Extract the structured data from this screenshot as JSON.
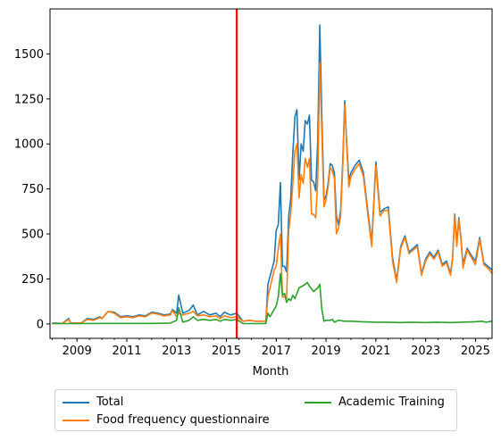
{
  "chart_data": {
    "type": "line",
    "title": "",
    "xlabel": "Month",
    "ylabel": "",
    "xlim": [
      "2007-12",
      "2025-09"
    ],
    "ylim": [
      -80,
      1750
    ],
    "x_ticks": [
      "2009",
      "2011",
      "2013",
      "2015",
      "2017",
      "2019",
      "2021",
      "2023",
      "2025"
    ],
    "y_ticks": [
      0,
      250,
      500,
      750,
      1000,
      1250,
      1500
    ],
    "grid": false,
    "legend_position": "below",
    "vertical_line": {
      "x": "2015-06",
      "color": "#ff0000"
    },
    "series": [
      {
        "name": "Total",
        "color": "#1f77b4",
        "points": [
          [
            "2008-01",
            5
          ],
          [
            "2008-03",
            5
          ],
          [
            "2008-06",
            3
          ],
          [
            "2008-09",
            30
          ],
          [
            "2008-10",
            5
          ],
          [
            "2009-03",
            5
          ],
          [
            "2009-06",
            30
          ],
          [
            "2009-09",
            25
          ],
          [
            "2009-12",
            40
          ],
          [
            "2010-01",
            30
          ],
          [
            "2010-04",
            70
          ],
          [
            "2010-07",
            65
          ],
          [
            "2010-10",
            40
          ],
          [
            "2011-01",
            45
          ],
          [
            "2011-04",
            40
          ],
          [
            "2011-07",
            50
          ],
          [
            "2011-10",
            45
          ],
          [
            "2012-01",
            65
          ],
          [
            "2012-04",
            60
          ],
          [
            "2012-07",
            50
          ],
          [
            "2012-10",
            55
          ],
          [
            "2012-11",
            80
          ],
          [
            "2013-01",
            60
          ],
          [
            "2013-02",
            160
          ],
          [
            "2013-04",
            60
          ],
          [
            "2013-07",
            75
          ],
          [
            "2013-09",
            105
          ],
          [
            "2013-11",
            50
          ],
          [
            "2014-02",
            70
          ],
          [
            "2014-05",
            50
          ],
          [
            "2014-08",
            60
          ],
          [
            "2014-10",
            40
          ],
          [
            "2014-12",
            65
          ],
          [
            "2015-03",
            50
          ],
          [
            "2015-06",
            60
          ],
          [
            "2015-09",
            15
          ],
          [
            "2015-12",
            20
          ],
          [
            "2016-03",
            15
          ],
          [
            "2016-06",
            15
          ],
          [
            "2016-08",
            15
          ],
          [
            "2016-09",
            220
          ],
          [
            "2016-12",
            350
          ],
          [
            "2017-01",
            520
          ],
          [
            "2017-02",
            550
          ],
          [
            "2017-03",
            785
          ],
          [
            "2017-04",
            320
          ],
          [
            "2017-05",
            320
          ],
          [
            "2017-06",
            290
          ],
          [
            "2017-07",
            600
          ],
          [
            "2017-08",
            700
          ],
          [
            "2017-09",
            950
          ],
          [
            "2017-10",
            1150
          ],
          [
            "2017-11",
            1190
          ],
          [
            "2017-12",
            800
          ],
          [
            "2018-01",
            1000
          ],
          [
            "2018-02",
            960
          ],
          [
            "2018-03",
            1130
          ],
          [
            "2018-04",
            1110
          ],
          [
            "2018-05",
            1160
          ],
          [
            "2018-06",
            800
          ],
          [
            "2018-07",
            790
          ],
          [
            "2018-08",
            740
          ],
          [
            "2018-09",
            1020
          ],
          [
            "2018-10",
            1660
          ],
          [
            "2018-11",
            1150
          ],
          [
            "2018-12",
            690
          ],
          [
            "2019-01",
            710
          ],
          [
            "2019-02",
            780
          ],
          [
            "2019-03",
            890
          ],
          [
            "2019-04",
            880
          ],
          [
            "2019-05",
            840
          ],
          [
            "2019-06",
            600
          ],
          [
            "2019-07",
            550
          ],
          [
            "2019-08",
            630
          ],
          [
            "2019-09",
            890
          ],
          [
            "2019-10",
            1240
          ],
          [
            "2019-11",
            1000
          ],
          [
            "2019-12",
            800
          ],
          [
            "2020-01",
            840
          ],
          [
            "2020-03",
            880
          ],
          [
            "2020-05",
            910
          ],
          [
            "2020-07",
            840
          ],
          [
            "2020-09",
            640
          ],
          [
            "2020-11",
            450
          ],
          [
            "2021-01",
            900
          ],
          [
            "2021-03",
            620
          ],
          [
            "2021-05",
            640
          ],
          [
            "2021-07",
            650
          ],
          [
            "2021-09",
            370
          ],
          [
            "2021-11",
            240
          ],
          [
            "2022-01",
            430
          ],
          [
            "2022-03",
            490
          ],
          [
            "2022-05",
            400
          ],
          [
            "2022-07",
            420
          ],
          [
            "2022-09",
            440
          ],
          [
            "2022-11",
            280
          ],
          [
            "2023-01",
            360
          ],
          [
            "2023-03",
            400
          ],
          [
            "2023-05",
            370
          ],
          [
            "2023-07",
            410
          ],
          [
            "2023-09",
            330
          ],
          [
            "2023-11",
            350
          ],
          [
            "2024-01",
            280
          ],
          [
            "2024-02",
            370
          ],
          [
            "2024-03",
            610
          ],
          [
            "2024-04",
            450
          ],
          [
            "2024-05",
            590
          ],
          [
            "2024-06",
            480
          ],
          [
            "2024-07",
            330
          ],
          [
            "2024-09",
            420
          ],
          [
            "2024-11",
            380
          ],
          [
            "2025-01",
            350
          ],
          [
            "2025-03",
            480
          ],
          [
            "2025-05",
            340
          ],
          [
            "2025-07",
            320
          ],
          [
            "2025-09",
            300
          ]
        ]
      },
      {
        "name": "Food frequency questionnaire",
        "color": "#ff7f0e",
        "points": [
          [
            "2008-01",
            3
          ],
          [
            "2008-03",
            3
          ],
          [
            "2008-06",
            3
          ],
          [
            "2008-09",
            25
          ],
          [
            "2008-10",
            5
          ],
          [
            "2009-03",
            5
          ],
          [
            "2009-06",
            25
          ],
          [
            "2009-09",
            20
          ],
          [
            "2009-12",
            35
          ],
          [
            "2010-01",
            30
          ],
          [
            "2010-04",
            70
          ],
          [
            "2010-07",
            60
          ],
          [
            "2010-10",
            35
          ],
          [
            "2011-01",
            40
          ],
          [
            "2011-04",
            35
          ],
          [
            "2011-07",
            45
          ],
          [
            "2011-10",
            40
          ],
          [
            "2012-01",
            60
          ],
          [
            "2012-04",
            55
          ],
          [
            "2012-07",
            45
          ],
          [
            "2012-10",
            50
          ],
          [
            "2012-11",
            75
          ],
          [
            "2013-01",
            40
          ],
          [
            "2013-02",
            60
          ],
          [
            "2013-04",
            50
          ],
          [
            "2013-07",
            60
          ],
          [
            "2013-09",
            70
          ],
          [
            "2013-11",
            45
          ],
          [
            "2014-02",
            50
          ],
          [
            "2014-05",
            40
          ],
          [
            "2014-08",
            45
          ],
          [
            "2014-10",
            30
          ],
          [
            "2014-12",
            45
          ],
          [
            "2015-03",
            35
          ],
          [
            "2015-06",
            40
          ],
          [
            "2015-09",
            15
          ],
          [
            "2015-12",
            20
          ],
          [
            "2016-03",
            15
          ],
          [
            "2016-06",
            15
          ],
          [
            "2016-08",
            15
          ],
          [
            "2016-09",
            150
          ],
          [
            "2016-12",
            300
          ],
          [
            "2017-01",
            320
          ],
          [
            "2017-02",
            420
          ],
          [
            "2017-03",
            500
          ],
          [
            "2017-04",
            150
          ],
          [
            "2017-05",
            150
          ],
          [
            "2017-06",
            140
          ],
          [
            "2017-07",
            520
          ],
          [
            "2017-08",
            610
          ],
          [
            "2017-09",
            780
          ],
          [
            "2017-10",
            960
          ],
          [
            "2017-11",
            1000
          ],
          [
            "2017-12",
            700
          ],
          [
            "2018-01",
            830
          ],
          [
            "2018-02",
            780
          ],
          [
            "2018-03",
            920
          ],
          [
            "2018-04",
            870
          ],
          [
            "2018-05",
            920
          ],
          [
            "2018-06",
            610
          ],
          [
            "2018-07",
            610
          ],
          [
            "2018-08",
            590
          ],
          [
            "2018-09",
            800
          ],
          [
            "2018-10",
            1450
          ],
          [
            "2018-11",
            1050
          ],
          [
            "2018-12",
            650
          ],
          [
            "2019-01",
            690
          ],
          [
            "2019-02",
            760
          ],
          [
            "2019-03",
            870
          ],
          [
            "2019-04",
            850
          ],
          [
            "2019-05",
            810
          ],
          [
            "2019-06",
            500
          ],
          [
            "2019-07",
            530
          ],
          [
            "2019-08",
            600
          ],
          [
            "2019-09",
            860
          ],
          [
            "2019-10",
            1220
          ],
          [
            "2019-11",
            980
          ],
          [
            "2019-12",
            760
          ],
          [
            "2020-01",
            820
          ],
          [
            "2020-03",
            860
          ],
          [
            "2020-05",
            890
          ],
          [
            "2020-07",
            820
          ],
          [
            "2020-09",
            620
          ],
          [
            "2020-11",
            430
          ],
          [
            "2021-01",
            880
          ],
          [
            "2021-03",
            600
          ],
          [
            "2021-05",
            630
          ],
          [
            "2021-07",
            630
          ],
          [
            "2021-09",
            350
          ],
          [
            "2021-11",
            230
          ],
          [
            "2022-01",
            420
          ],
          [
            "2022-03",
            480
          ],
          [
            "2022-05",
            390
          ],
          [
            "2022-07",
            410
          ],
          [
            "2022-09",
            430
          ],
          [
            "2022-11",
            270
          ],
          [
            "2023-01",
            350
          ],
          [
            "2023-03",
            390
          ],
          [
            "2023-05",
            360
          ],
          [
            "2023-07",
            400
          ],
          [
            "2023-09",
            320
          ],
          [
            "2023-11",
            340
          ],
          [
            "2024-01",
            270
          ],
          [
            "2024-02",
            360
          ],
          [
            "2024-03",
            600
          ],
          [
            "2024-04",
            430
          ],
          [
            "2024-05",
            580
          ],
          [
            "2024-06",
            470
          ],
          [
            "2024-07",
            310
          ],
          [
            "2024-09",
            410
          ],
          [
            "2024-11",
            370
          ],
          [
            "2025-01",
            330
          ],
          [
            "2025-03",
            470
          ],
          [
            "2025-05",
            330
          ],
          [
            "2025-07",
            310
          ],
          [
            "2025-09",
            280
          ]
        ]
      },
      {
        "name": "Academic Training",
        "color": "#2ca02c",
        "points": [
          [
            "2008-01",
            2
          ],
          [
            "2009-01",
            2
          ],
          [
            "2010-01",
            3
          ],
          [
            "2011-01",
            3
          ],
          [
            "2012-01",
            3
          ],
          [
            "2012-10",
            5
          ],
          [
            "2013-01",
            20
          ],
          [
            "2013-02",
            90
          ],
          [
            "2013-04",
            10
          ],
          [
            "2013-07",
            20
          ],
          [
            "2013-09",
            40
          ],
          [
            "2013-11",
            20
          ],
          [
            "2014-02",
            25
          ],
          [
            "2014-05",
            20
          ],
          [
            "2014-08",
            25
          ],
          [
            "2014-10",
            15
          ],
          [
            "2014-12",
            25
          ],
          [
            "2015-03",
            20
          ],
          [
            "2015-06",
            25
          ],
          [
            "2015-09",
            2
          ],
          [
            "2016-06",
            2
          ],
          [
            "2016-08",
            3
          ],
          [
            "2016-09",
            60
          ],
          [
            "2016-10",
            40
          ],
          [
            "2017-01",
            100
          ],
          [
            "2017-02",
            150
          ],
          [
            "2017-03",
            280
          ],
          [
            "2017-04",
            160
          ],
          [
            "2017-05",
            170
          ],
          [
            "2017-06",
            120
          ],
          [
            "2017-07",
            140
          ],
          [
            "2017-08",
            130
          ],
          [
            "2017-09",
            160
          ],
          [
            "2017-10",
            140
          ],
          [
            "2017-11",
            170
          ],
          [
            "2017-12",
            200
          ],
          [
            "2018-03",
            220
          ],
          [
            "2018-04",
            230
          ],
          [
            "2018-05",
            210
          ],
          [
            "2018-07",
            180
          ],
          [
            "2018-09",
            200
          ],
          [
            "2018-10",
            220
          ],
          [
            "2018-11",
            80
          ],
          [
            "2018-12",
            15
          ],
          [
            "2019-01",
            20
          ],
          [
            "2019-03",
            20
          ],
          [
            "2019-04",
            25
          ],
          [
            "2019-05",
            10
          ],
          [
            "2019-07",
            20
          ],
          [
            "2019-10",
            15
          ],
          [
            "2020-01",
            15
          ],
          [
            "2020-06",
            12
          ],
          [
            "2021-01",
            10
          ],
          [
            "2021-06",
            10
          ],
          [
            "2022-01",
            8
          ],
          [
            "2022-06",
            10
          ],
          [
            "2023-01",
            8
          ],
          [
            "2023-06",
            10
          ],
          [
            "2024-01",
            8
          ],
          [
            "2024-06",
            10
          ],
          [
            "2025-01",
            12
          ],
          [
            "2025-04",
            15
          ],
          [
            "2025-06",
            10
          ],
          [
            "2025-09",
            15
          ]
        ]
      }
    ]
  }
}
